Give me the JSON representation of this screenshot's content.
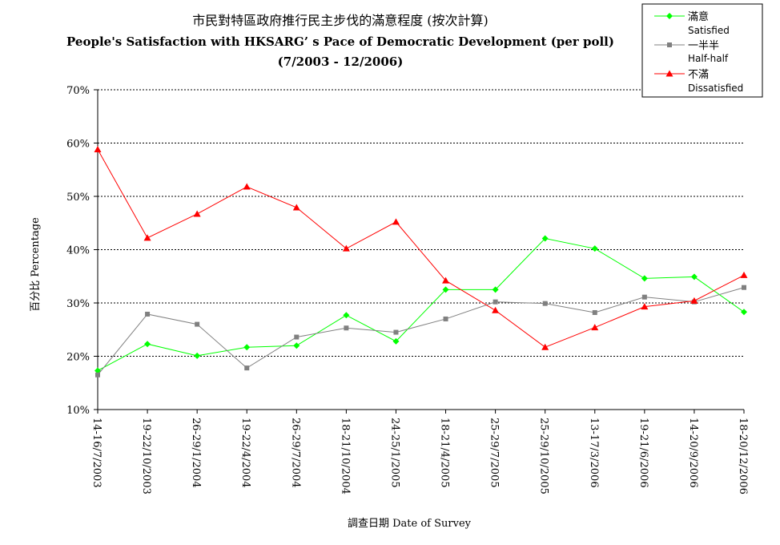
{
  "chart_data": {
    "type": "line",
    "title_cn": "市民對特區政府推行民主步伐的滿意程度 (按次計算)",
    "title_en": "People's Satisfaction with HKSARG’ s Pace of Democratic Development (per poll)",
    "subtitle": "(7/2003 - 12/2006)",
    "xlabel": "調查日期 Date of Survey",
    "ylabel": "百分比 Percentage",
    "ylim": [
      10,
      70
    ],
    "yticks": [
      10,
      20,
      30,
      40,
      50,
      60,
      70
    ],
    "ytick_suffix": "%",
    "grid": true,
    "legend_position": "top-right",
    "categories": [
      "14-16/7/2003",
      "19-22/10/2003",
      "26-29/1/2004",
      "19-22/4/2004",
      "26-29/7/2004",
      "18-21/10/2004",
      "24-25/1/2005",
      "18-21/4/2005",
      "25-29/7/2005",
      "25-29/10/2005",
      "13-17/3/2006",
      "19-21/6/2006",
      "14-20/9/2006",
      "18-20/12/2006"
    ],
    "series": [
      {
        "name": "滿意",
        "name_en": "Satisfied",
        "color": "#00ff00",
        "marker": "diamond",
        "values": [
          17.3,
          22.3,
          20.1,
          21.7,
          22.0,
          27.7,
          22.8,
          32.5,
          32.5,
          42.1,
          40.2,
          34.6,
          34.9,
          28.3
        ]
      },
      {
        "name": "一半半",
        "name_en": "Half-half",
        "color": "#808080",
        "marker": "square",
        "values": [
          16.5,
          27.9,
          26.0,
          17.8,
          23.6,
          25.3,
          24.5,
          27.0,
          30.2,
          29.9,
          28.2,
          31.1,
          30.2,
          32.9
        ]
      },
      {
        "name": "不滿",
        "name_en": "Dissatisfied",
        "color": "#ff0000",
        "marker": "triangle",
        "values": [
          58.8,
          42.2,
          46.7,
          51.8,
          47.9,
          40.2,
          45.2,
          34.2,
          28.6,
          21.7,
          25.4,
          29.3,
          30.4,
          35.2
        ]
      }
    ]
  }
}
